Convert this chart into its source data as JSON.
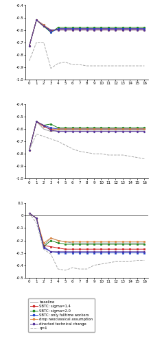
{
  "x": [
    0,
    1,
    2,
    3,
    4,
    5,
    6,
    7,
    8,
    9,
    10,
    11,
    12,
    13,
    14,
    15,
    16
  ],
  "panel1": {
    "baseline": [
      -0.73,
      -0.52,
      -0.57,
      -0.6,
      -0.6,
      -0.6,
      -0.6,
      -0.6,
      -0.6,
      -0.6,
      -0.6,
      -0.6,
      -0.6,
      -0.6,
      -0.6,
      -0.6,
      -0.6
    ],
    "sbtc14": [
      -0.73,
      -0.52,
      -0.57,
      -0.61,
      -0.59,
      -0.59,
      -0.59,
      -0.59,
      -0.59,
      -0.59,
      -0.59,
      -0.59,
      -0.59,
      -0.59,
      -0.59,
      -0.59,
      -0.59
    ],
    "sbtc20": [
      -0.73,
      -0.52,
      -0.57,
      -0.62,
      -0.58,
      -0.58,
      -0.58,
      -0.58,
      -0.58,
      -0.58,
      -0.58,
      -0.58,
      -0.58,
      -0.58,
      -0.58,
      -0.58,
      -0.58
    ],
    "fulltime": [
      -0.73,
      -0.52,
      -0.56,
      -0.62,
      -0.59,
      -0.59,
      -0.59,
      -0.59,
      -0.59,
      -0.59,
      -0.59,
      -0.59,
      -0.59,
      -0.59,
      -0.59,
      -0.59,
      -0.59
    ],
    "neoclassical": [
      -0.73,
      -0.52,
      -0.56,
      -0.6,
      -0.6,
      -0.6,
      -0.6,
      -0.6,
      -0.6,
      -0.6,
      -0.6,
      -0.6,
      -0.6,
      -0.6,
      -0.6,
      -0.6,
      -0.6
    ],
    "directed": [
      -0.73,
      -0.52,
      -0.57,
      -0.6,
      -0.6,
      -0.6,
      -0.6,
      -0.6,
      -0.6,
      -0.6,
      -0.6,
      -0.6,
      -0.6,
      -0.6,
      -0.6,
      -0.6,
      -0.6
    ],
    "q4": [
      -0.85,
      -0.7,
      -0.7,
      -0.91,
      -0.87,
      -0.86,
      -0.88,
      -0.88,
      -0.89,
      -0.89,
      -0.89,
      -0.89,
      -0.89,
      -0.89,
      -0.89,
      -0.89,
      -0.89
    ],
    "ylim": [
      -1.0,
      -0.4
    ],
    "yticks": [
      -1.0,
      -0.9,
      -0.8,
      -0.7,
      -0.6,
      -0.5,
      -0.4
    ]
  },
  "panel2": {
    "baseline": [
      -0.77,
      -0.54,
      -0.6,
      -0.62,
      -0.61,
      -0.61,
      -0.61,
      -0.61,
      -0.61,
      -0.61,
      -0.61,
      -0.61,
      -0.61,
      -0.61,
      -0.61,
      -0.61,
      -0.61
    ],
    "sbtc14": [
      -0.77,
      -0.54,
      -0.58,
      -0.6,
      -0.6,
      -0.6,
      -0.6,
      -0.6,
      -0.6,
      -0.6,
      -0.6,
      -0.6,
      -0.6,
      -0.6,
      -0.6,
      -0.6,
      -0.6
    ],
    "sbtc20": [
      -0.77,
      -0.54,
      -0.57,
      -0.56,
      -0.59,
      -0.59,
      -0.59,
      -0.59,
      -0.59,
      -0.59,
      -0.59,
      -0.59,
      -0.59,
      -0.59,
      -0.59,
      -0.59,
      -0.59
    ],
    "fulltime": [
      -0.77,
      -0.54,
      -0.57,
      -0.59,
      -0.6,
      -0.6,
      -0.6,
      -0.6,
      -0.6,
      -0.6,
      -0.6,
      -0.6,
      -0.6,
      -0.6,
      -0.6,
      -0.6,
      -0.6
    ],
    "neoclassical": [
      -0.77,
      -0.54,
      -0.57,
      -0.61,
      -0.6,
      -0.6,
      -0.6,
      -0.6,
      -0.6,
      -0.6,
      -0.6,
      -0.6,
      -0.6,
      -0.6,
      -0.6,
      -0.6,
      -0.6
    ],
    "directed": [
      -0.77,
      -0.54,
      -0.57,
      -0.61,
      -0.62,
      -0.62,
      -0.62,
      -0.62,
      -0.62,
      -0.62,
      -0.62,
      -0.62,
      -0.62,
      -0.62,
      -0.62,
      -0.62,
      -0.62
    ],
    "q4": [
      -0.77,
      -0.64,
      -0.66,
      -0.68,
      -0.7,
      -0.73,
      -0.76,
      -0.78,
      -0.79,
      -0.8,
      -0.8,
      -0.81,
      -0.81,
      -0.81,
      -0.82,
      -0.83,
      -0.84
    ],
    "ylim": [
      -1.0,
      -0.4
    ],
    "yticks": [
      -1.0,
      -0.9,
      -0.8,
      -0.7,
      -0.6,
      -0.5,
      -0.4
    ]
  },
  "panel3": {
    "baseline": [
      0.02,
      -0.02,
      -0.24,
      -0.18,
      -0.2,
      -0.21,
      -0.22,
      -0.22,
      -0.22,
      -0.22,
      -0.22,
      -0.22,
      -0.22,
      -0.22,
      -0.22,
      -0.22,
      -0.22
    ],
    "sbtc14": [
      0.02,
      -0.02,
      -0.24,
      -0.25,
      -0.26,
      -0.27,
      -0.27,
      -0.27,
      -0.27,
      -0.27,
      -0.27,
      -0.27,
      -0.27,
      -0.27,
      -0.27,
      -0.27,
      -0.27
    ],
    "sbtc20": [
      0.02,
      -0.02,
      -0.25,
      -0.2,
      -0.22,
      -0.23,
      -0.23,
      -0.23,
      -0.23,
      -0.23,
      -0.23,
      -0.23,
      -0.23,
      -0.23,
      -0.23,
      -0.23,
      -0.23
    ],
    "fulltime": [
      0.02,
      -0.02,
      -0.26,
      -0.29,
      -0.3,
      -0.3,
      -0.3,
      -0.3,
      -0.3,
      -0.3,
      -0.3,
      -0.3,
      -0.3,
      -0.3,
      -0.3,
      -0.3,
      -0.3
    ],
    "neoclassical": [
      0.02,
      -0.02,
      -0.22,
      -0.18,
      -0.2,
      -0.21,
      -0.21,
      -0.21,
      -0.21,
      -0.21,
      -0.21,
      -0.21,
      -0.21,
      -0.21,
      -0.21,
      -0.21,
      -0.21
    ],
    "directed": [
      0.02,
      -0.02,
      -0.25,
      -0.29,
      -0.29,
      -0.29,
      -0.29,
      -0.29,
      -0.29,
      -0.29,
      -0.29,
      -0.29,
      -0.29,
      -0.29,
      -0.29,
      -0.29,
      -0.29
    ],
    "q4": [
      0.02,
      -0.06,
      -0.27,
      -0.31,
      -0.43,
      -0.44,
      -0.42,
      -0.43,
      -0.43,
      -0.4,
      -0.39,
      -0.38,
      -0.37,
      -0.37,
      -0.37,
      -0.36,
      -0.36
    ],
    "ylim": [
      -0.5,
      0.1
    ],
    "yticks": [
      -0.5,
      -0.4,
      -0.3,
      -0.2,
      -0.1,
      0.0,
      0.1
    ]
  },
  "colors": {
    "baseline": "#999999",
    "sbtc14": "#cc2222",
    "sbtc20": "#228822",
    "fulltime": "#2244cc",
    "neoclassical": "#dd8844",
    "directed": "#553399",
    "q4": "#aaaaaa"
  },
  "markers": {
    "baseline": "None",
    "sbtc14": "s",
    "sbtc20": "o",
    "fulltime": "s",
    "neoclassical": "s",
    "directed": "P",
    "q4": "None"
  },
  "linestyles": {
    "baseline": "-",
    "sbtc14": "-",
    "sbtc20": "-",
    "fulltime": "-",
    "neoclassical": "-",
    "directed": "-",
    "q4": "--"
  },
  "legend_labels": {
    "baseline": "baseline",
    "sbtc14": "SBTC: sigma=1.4",
    "sbtc20": "SBTC: sigma=2.0",
    "fulltime": "SBTC: only fulltime workers",
    "neoclassical": "drop neoclassical assumption",
    "directed": "directed technical change",
    "q4": "q=4"
  }
}
